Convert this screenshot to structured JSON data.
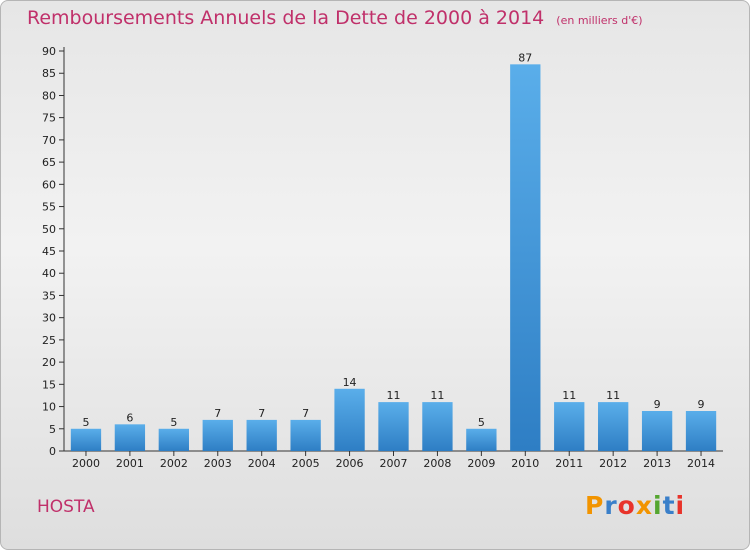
{
  "header": {
    "title": "Remboursements Annuels de la Dette de 2000 à 2014",
    "unit": "(en milliers d'€)"
  },
  "footer": {
    "place": "HOSTA",
    "logo_letters": [
      "P",
      "r",
      "o",
      "x",
      "i",
      "t",
      "i"
    ],
    "logo_colors": [
      "#f29400",
      "#3a7fc9",
      "#e8332a",
      "#f29400",
      "#55a630",
      "#3a7fc9",
      "#e8332a"
    ]
  },
  "colors": {
    "title": "#c0306a",
    "bar_light": "#5aaeea",
    "bar_dark": "#2e7ec4",
    "axis": "#333333",
    "grid": "#c8c8c8"
  },
  "chart_data": {
    "type": "bar",
    "title": "Remboursements Annuels de la Dette de 2000 à 2014",
    "subtitle": "(en milliers d'€)",
    "xlabel": "",
    "ylabel": "",
    "categories": [
      "2000",
      "2001",
      "2002",
      "2003",
      "2004",
      "2005",
      "2006",
      "2007",
      "2008",
      "2009",
      "2010",
      "2011",
      "2012",
      "2013",
      "2014"
    ],
    "values": [
      5,
      6,
      5,
      7,
      7,
      7,
      14,
      11,
      11,
      5,
      87,
      11,
      11,
      9,
      9
    ],
    "data_labels": [
      "5",
      "6",
      "5",
      "7",
      "7",
      "7",
      "14",
      "11",
      "11",
      "5",
      "87",
      "11",
      "11",
      "9",
      "9"
    ],
    "ylim": [
      0,
      90
    ],
    "yticks": [
      0,
      5,
      10,
      15,
      20,
      25,
      30,
      35,
      40,
      45,
      50,
      55,
      60,
      65,
      70,
      75,
      80,
      85,
      90
    ],
    "grid": false,
    "legend": "none"
  }
}
